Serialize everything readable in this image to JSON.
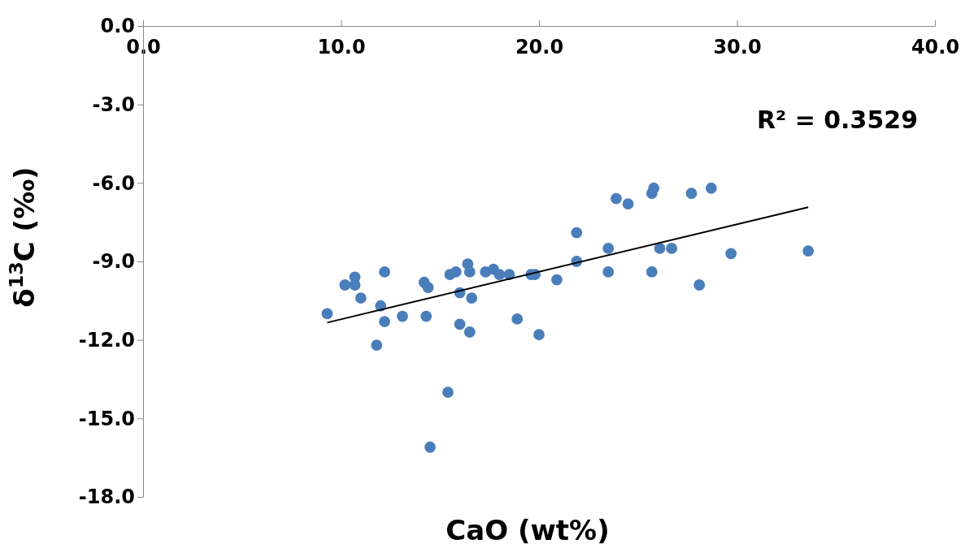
{
  "chart_data": {
    "type": "scatter",
    "xlabel": "CaO (wt%)",
    "ylabel": "δ$^{13}$C (‰)",
    "xlim": [
      0,
      40
    ],
    "ylim": [
      -18,
      0
    ],
    "xticks": [
      {
        "value": 0,
        "label": "0.0"
      },
      {
        "value": 10,
        "label": "10.0"
      },
      {
        "value": 20,
        "label": "20.0"
      },
      {
        "value": 30,
        "label": "30.0"
      },
      {
        "value": 40,
        "label": "40.0"
      }
    ],
    "yticks": [
      {
        "value": 0,
        "label": "0.0"
      },
      {
        "value": -3,
        "label": "-3.0"
      },
      {
        "value": -6,
        "label": "-6.0"
      },
      {
        "value": -9,
        "label": "-9.0"
      },
      {
        "value": -12,
        "label": "-12.0"
      },
      {
        "value": -15,
        "label": "-15.0"
      },
      {
        "value": -18,
        "label": "-18.0"
      }
    ],
    "grid": false,
    "annotations": [
      "R² = 0.3529"
    ],
    "series": [
      {
        "marker": "circle",
        "color": "#4a7ebb",
        "x": [
          9.3,
          10.2,
          10.7,
          10.7,
          11.0,
          12.2,
          12.0,
          12.2,
          11.8,
          13.1,
          14.2,
          14.4,
          14.3,
          14.5,
          15.4,
          15.5,
          15.8,
          16.0,
          16.0,
          16.4,
          16.5,
          16.6,
          16.5,
          17.3,
          17.7,
          18.0,
          18.5,
          18.9,
          19.6,
          19.8,
          20.0,
          20.9,
          21.9,
          21.9,
          23.5,
          23.5,
          23.9,
          24.5,
          25.8,
          25.7,
          26.1,
          26.7,
          25.7,
          27.7,
          28.1,
          28.7,
          29.7,
          33.6
        ],
        "values": [
          -11.0,
          -9.9,
          -9.6,
          -9.9,
          -10.4,
          -9.4,
          -10.7,
          -11.3,
          -12.2,
          -11.1,
          -9.8,
          -10.0,
          -11.1,
          -16.1,
          -14.0,
          -9.5,
          -9.4,
          -10.2,
          -11.4,
          -9.1,
          -9.4,
          -10.4,
          -11.7,
          -9.4,
          -9.3,
          -9.5,
          -9.5,
          -11.2,
          -9.5,
          -9.5,
          -11.8,
          -9.7,
          -7.9,
          -9.0,
          -8.5,
          -9.4,
          -6.6,
          -6.8,
          -6.2,
          -6.4,
          -8.5,
          -8.5,
          -9.4,
          -6.4,
          -9.9,
          -6.2,
          -8.7,
          -8.6
        ]
      },
      {
        "type": "line",
        "marker": "none",
        "color": "#000000",
        "x": [
          9.3,
          33.6
        ],
        "values": [
          -11.34,
          -6.93
        ]
      }
    ]
  }
}
